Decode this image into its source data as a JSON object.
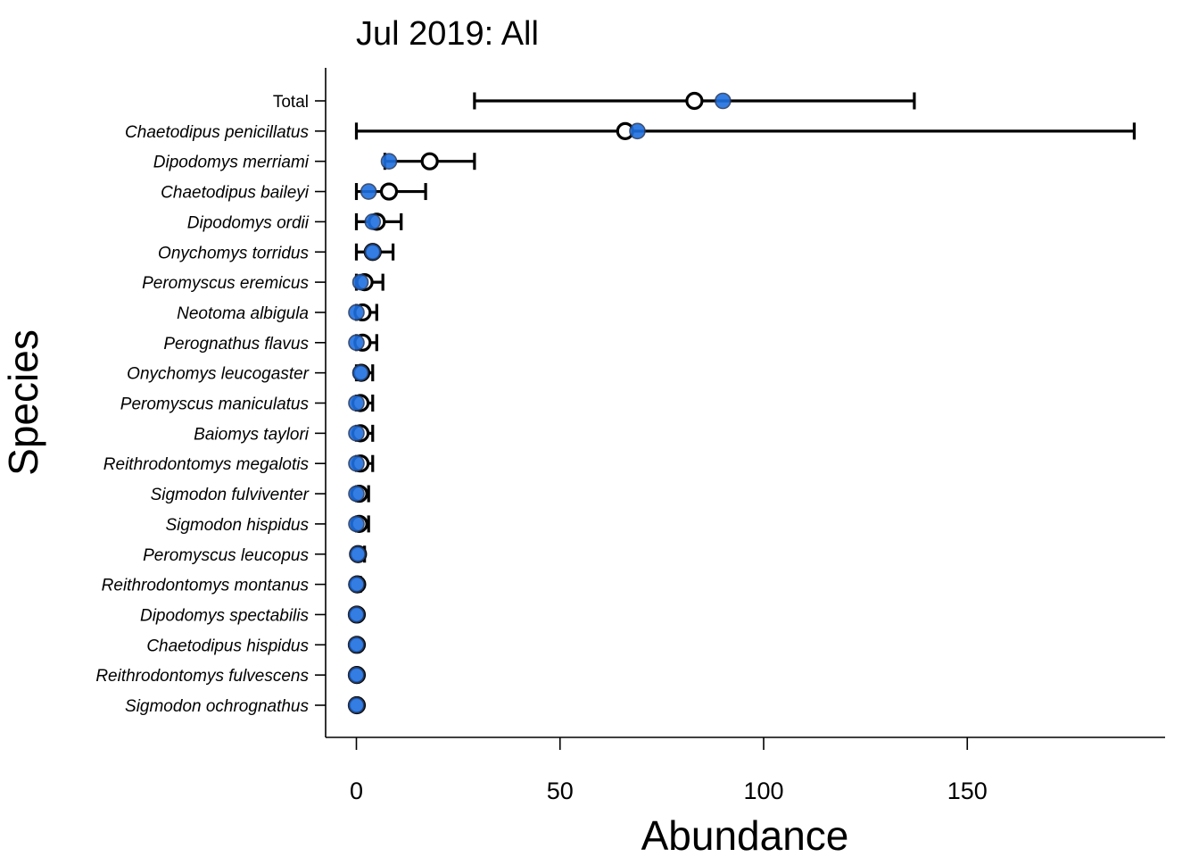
{
  "chart_data": {
    "type": "scatter",
    "title": "Jul 2019: All",
    "xlabel": "Abundance",
    "ylabel": "Species",
    "xlim": [
      -7.5,
      199
    ],
    "x_ticks": [
      0,
      50,
      100,
      150
    ],
    "grid": false,
    "legend": "none",
    "colors": {
      "observed": "#1f6fe0",
      "estimate_fill": "#ffffff",
      "estimate_stroke": "#000000"
    },
    "categories": [
      "Total",
      "Chaetodipus penicillatus",
      "Dipodomys merriami",
      "Chaetodipus baileyi",
      "Dipodomys ordii",
      "Onychomys torridus",
      "Peromyscus eremicus",
      "Neotoma albigula",
      "Perognathus flavus",
      "Onychomys leucogaster",
      "Peromyscus maniculatus",
      "Baiomys taylori",
      "Reithrodontomys megalotis",
      "Sigmodon fulviventer",
      "Sigmodon hispidus",
      "Peromyscus leucopus",
      "Reithrodontomys montanus",
      "Dipodomys spectabilis",
      "Chaetodipus hispidus",
      "Reithrodontomys fulvescens",
      "Sigmodon ochrognathus"
    ],
    "series": [
      {
        "values_estimate": [
          83,
          66,
          18,
          8,
          5,
          4,
          2,
          1.5,
          1.5,
          1.2,
          1,
          1,
          1,
          0.7,
          0.7,
          0.4,
          0.2,
          0.1,
          0.1,
          0.1,
          0.1
        ],
        "lower": [
          29,
          0,
          7,
          0,
          0,
          0,
          0,
          0,
          0,
          0,
          0,
          0,
          0,
          0,
          0,
          0,
          0,
          0,
          0,
          0,
          0
        ],
        "upper": [
          137,
          191,
          29,
          17,
          11,
          9,
          6.5,
          5,
          5,
          4,
          4,
          4,
          4,
          3,
          3,
          2,
          1,
          0.5,
          0.5,
          0.5,
          0.5
        ],
        "values_observed": [
          90,
          69,
          8,
          3,
          4,
          4,
          1,
          0,
          0,
          1,
          0,
          0,
          0,
          0,
          0,
          0.3,
          0,
          0,
          0,
          0,
          0
        ]
      }
    ]
  }
}
